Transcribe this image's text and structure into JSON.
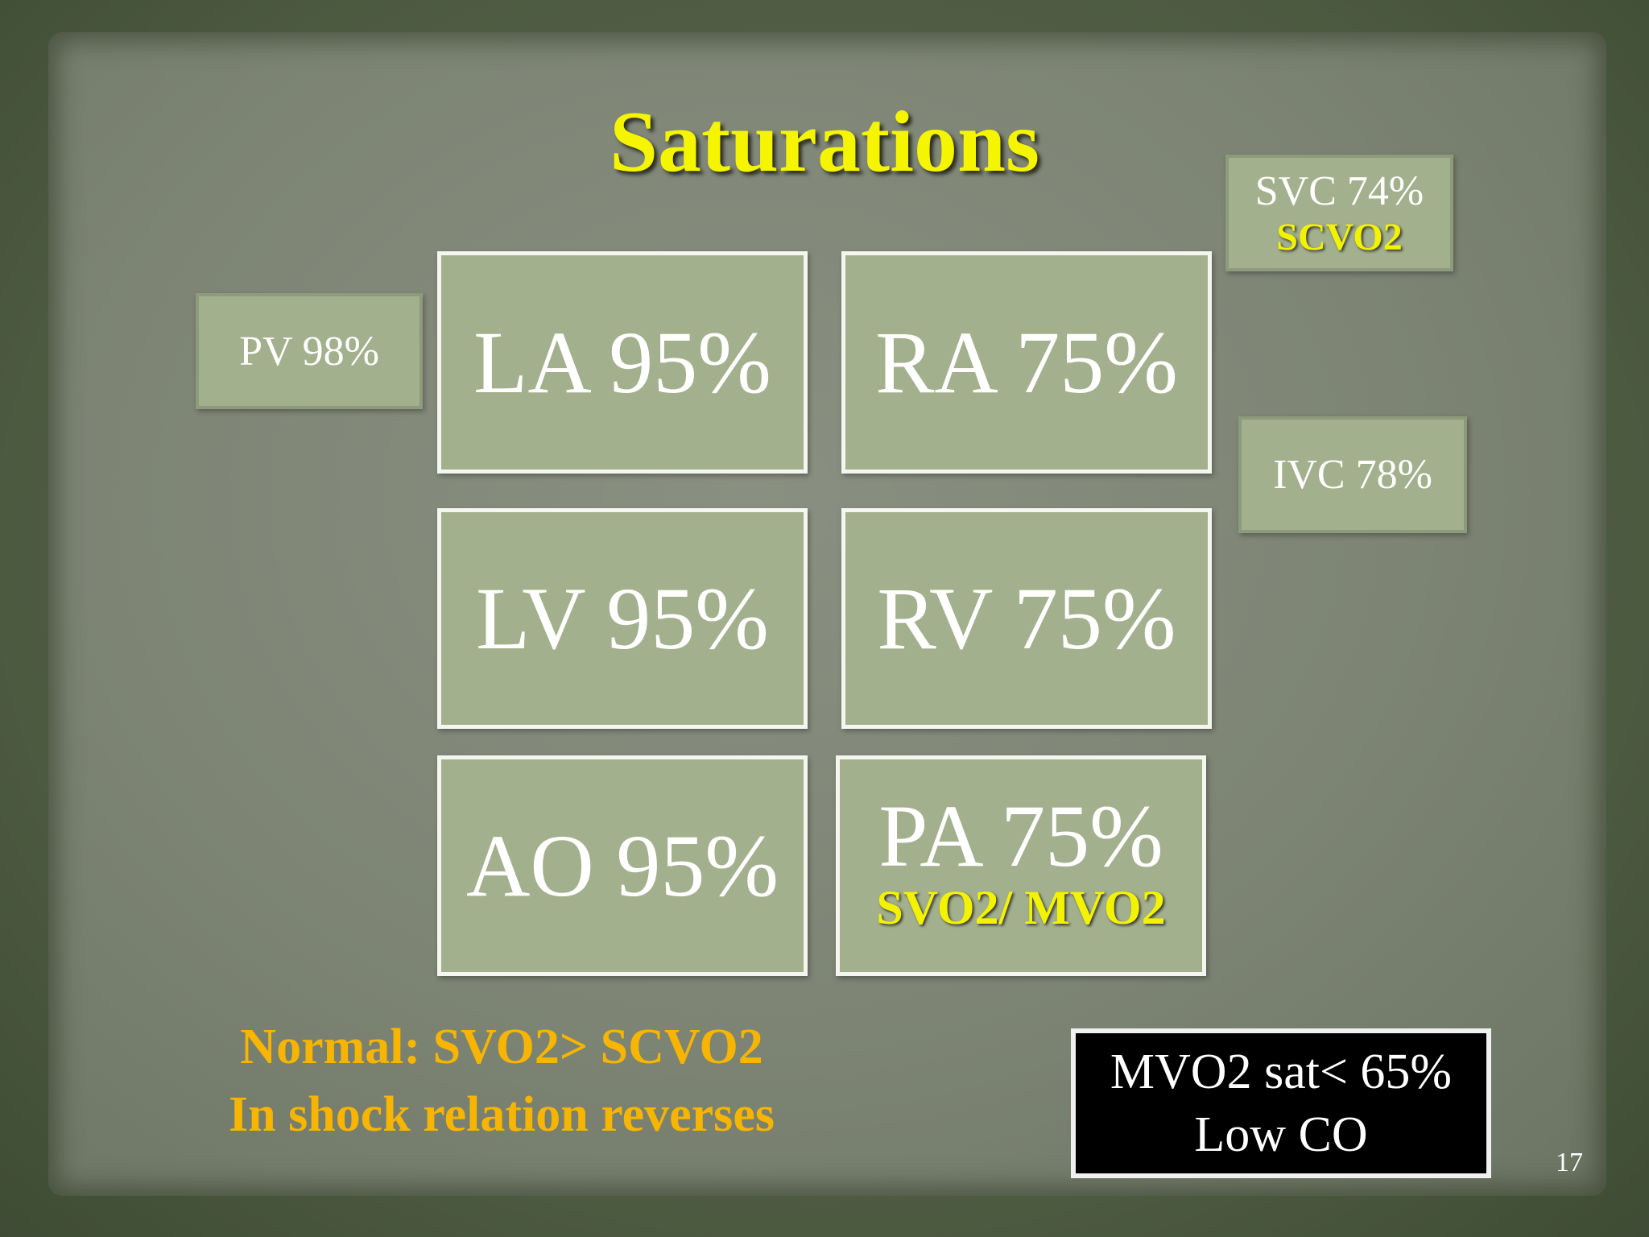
{
  "title": "Saturations",
  "side_boxes": [
    {
      "label": "SVC 74%",
      "sublabel": "SCVO2"
    },
    {
      "label": "PV 98%"
    },
    {
      "label": "IVC 78%"
    }
  ],
  "chambers": [
    {
      "label": "LA 95%"
    },
    {
      "label": "RA 75%"
    },
    {
      "label": "LV 95%"
    },
    {
      "label": "RV 75%"
    },
    {
      "label": "AO 95%"
    },
    {
      "label": "PA 75%",
      "sublabel": "SVO2/ MVO2"
    }
  ],
  "note": [
    "Normal: SVO2> SCVO2",
    "In shock relation reverses"
  ],
  "callout": [
    "MVO2 sat< 65%",
    "Low CO"
  ],
  "page_number": "17"
}
